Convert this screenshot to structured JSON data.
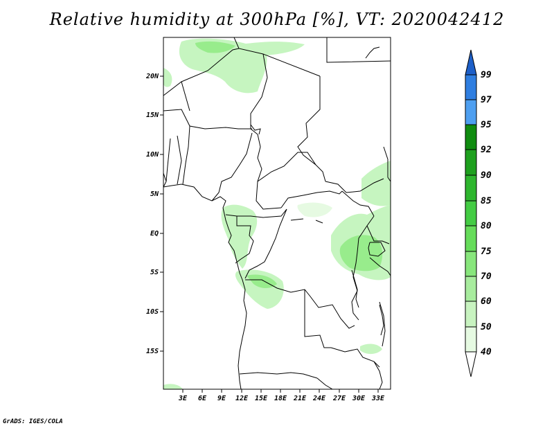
{
  "title": "Relative humidity at 300hPa [%], VT: 2020042412",
  "credit": "GrADS: IGES/COLA",
  "map": {
    "lon_labels": [
      "3E",
      "6E",
      "9E",
      "12E",
      "15E",
      "18E",
      "21E",
      "24E",
      "27E",
      "30E",
      "33E"
    ],
    "lat_labels": [
      "20N",
      "15N",
      "10N",
      "5N",
      "EQ",
      "5S",
      "10S",
      "15S"
    ],
    "boundary_color": "#000000",
    "fill_colors": {
      "light": "#c6f5c0",
      "medium": "#98ec8c"
    }
  },
  "colorbar": {
    "levels": [
      "40",
      "50",
      "60",
      "70",
      "75",
      "80",
      "85",
      "90",
      "92",
      "95",
      "97",
      "99"
    ],
    "colors": [
      "#ffffff",
      "#e6fae2",
      "#c8f3c0",
      "#a8ec9e",
      "#88e67c",
      "#66dc5a",
      "#44cc44",
      "#2eb62e",
      "#1ea01e",
      "#108c10",
      "#4e9ff0",
      "#2f7ee0",
      "#1d5fc8"
    ]
  }
}
